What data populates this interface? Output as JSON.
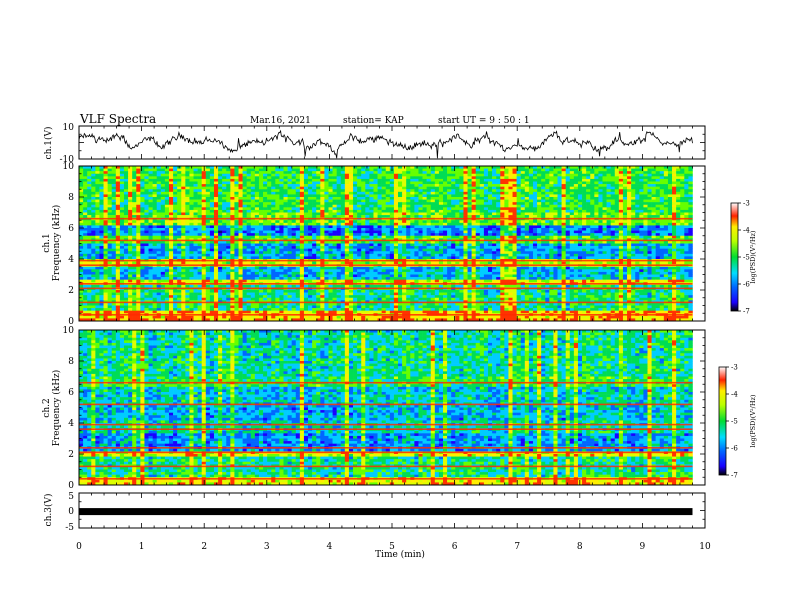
{
  "header": {
    "title": "VLF Spectra",
    "date": "Mar.16, 2021",
    "station": "station= KAP",
    "start": "start  UT =   9  : 50 : 1"
  },
  "chart_data": [
    {
      "type": "line",
      "panel": "ch1-waveform",
      "ylabel": "ch.1(V)",
      "ylim": [
        -10,
        10
      ],
      "yticks": [
        "10",
        "-10"
      ],
      "xlim": [
        0,
        10
      ],
      "color": "#000000"
    },
    {
      "type": "heatmap",
      "panel": "ch1-spectrogram",
      "ylabel_line1": "ch.1",
      "ylabel_line2": "Frequency (kHz)",
      "ylim": [
        0,
        10
      ],
      "yticks": [
        "0",
        "2",
        "4",
        "6",
        "8",
        "10"
      ],
      "xlim": [
        0,
        9.8
      ],
      "colorbar": {
        "label": "log(PSD)(V²/Hz)",
        "range": [
          -7,
          -3
        ],
        "ticks": [
          "-3",
          "-4",
          "-5",
          "-6",
          "-7"
        ]
      }
    },
    {
      "type": "heatmap",
      "panel": "ch2-spectrogram",
      "ylabel_line1": "ch.2",
      "ylabel_line2": "Frequency (kHz)",
      "ylim": [
        0,
        10
      ],
      "yticks": [
        "0",
        "2",
        "4",
        "6",
        "8",
        "10"
      ],
      "xlim": [
        0,
        9.8
      ],
      "colorbar": {
        "label": "log(PSD)(V²/Hz)",
        "range": [
          -7,
          -3
        ],
        "ticks": [
          "-3",
          "-4",
          "-5",
          "-6",
          "-7"
        ]
      }
    },
    {
      "type": "line",
      "panel": "ch3-signal",
      "ylabel": "ch.3(V)",
      "ylim": [
        -5,
        5
      ],
      "yticks": [
        "5",
        "0",
        "-5"
      ],
      "xlim": [
        0,
        10
      ],
      "level": -0.3,
      "color": "#000000"
    }
  ],
  "xaxis": {
    "label": "Time (min)",
    "ticks": [
      "0",
      "1",
      "2",
      "3",
      "4",
      "5",
      "6",
      "7",
      "8",
      "9",
      "10"
    ],
    "range": [
      0,
      10
    ]
  }
}
